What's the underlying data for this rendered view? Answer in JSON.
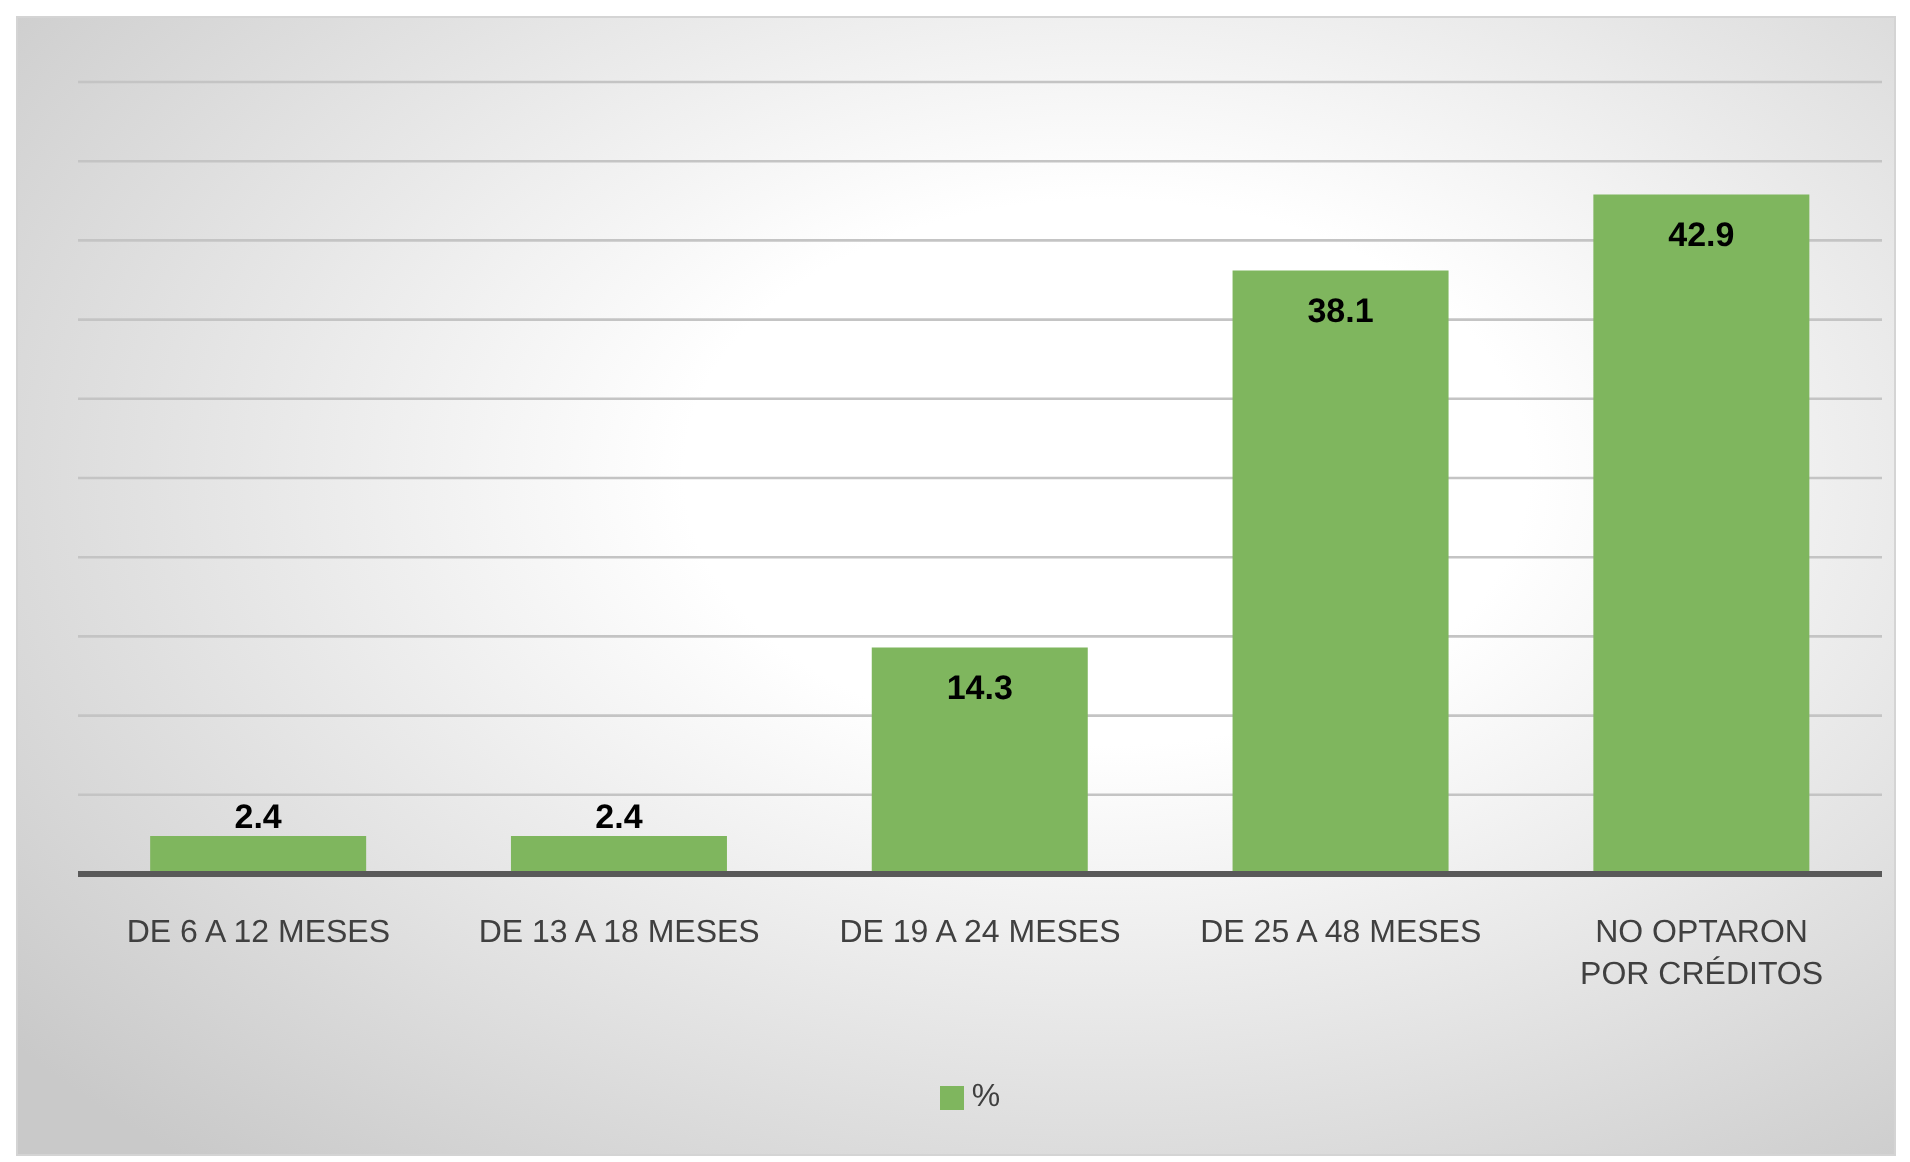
{
  "chart_data": {
    "type": "bar",
    "categories": [
      "DE 6 A 12 MESES",
      "DE 13 A 18 MESES",
      "DE 19 A 24 MESES",
      "DE 25 A 48 MESES",
      "NO OPTARON POR CRÉDITOS"
    ],
    "series": [
      {
        "name": "%",
        "color": "#7fb65e",
        "values": [
          2.4,
          2.4,
          14.3,
          38.1,
          42.9
        ]
      }
    ],
    "grid": "y",
    "legend": "bottom",
    "tick_labels": "x",
    "data_labels": true
  }
}
